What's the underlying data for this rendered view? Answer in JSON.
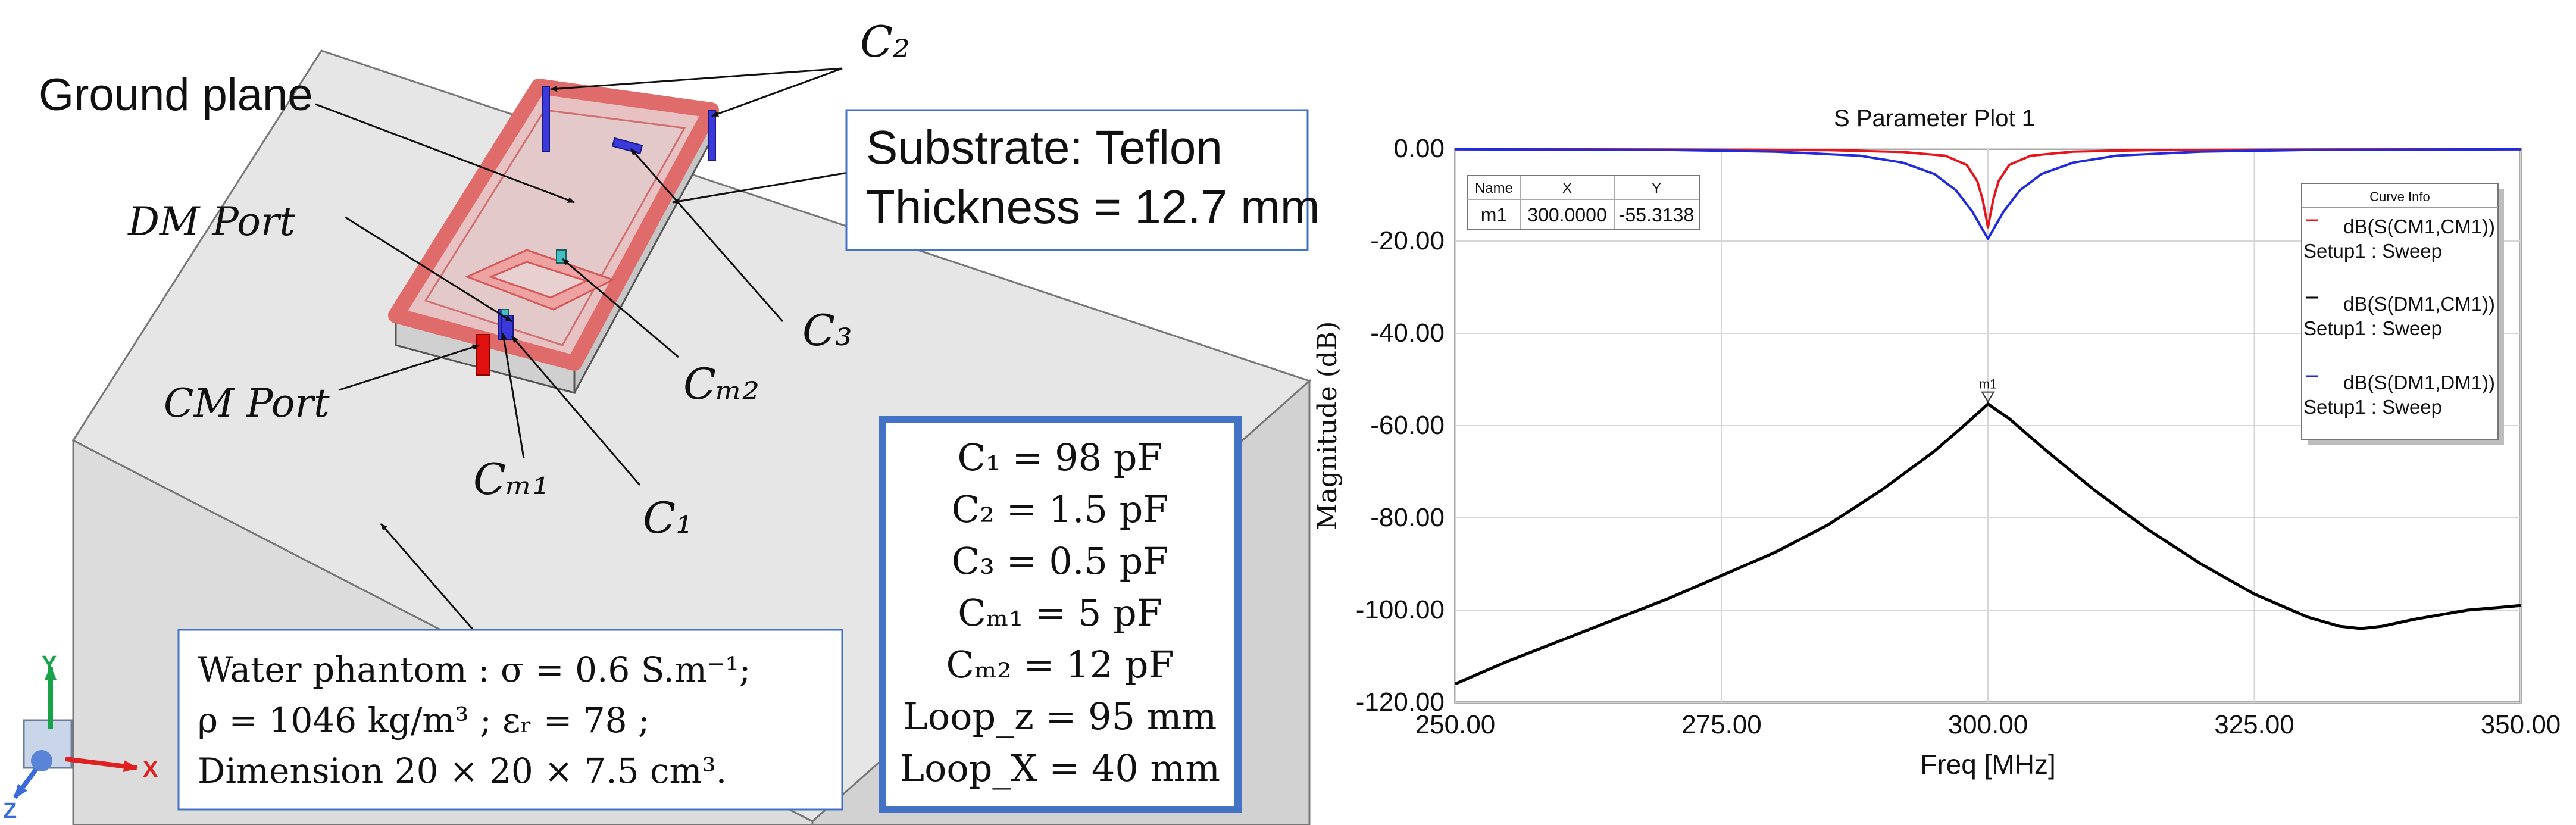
{
  "left_figure": {
    "labels": {
      "ground_plane": "Ground plane",
      "dm_port": "DM Port",
      "cm_port": "CM Port",
      "c1": "C₁",
      "c2": "C₂",
      "c3": "C₃",
      "cm1": "Cₘ₁",
      "cm2": "Cₘ₂"
    },
    "substrate_box": {
      "line1": "Substrate: Teflon",
      "line2": "Thickness = 12.7 mm"
    },
    "phantom_box": {
      "line1": "Water phantom :  σ = 0.6 S.m⁻¹;",
      "line2": "ρ = 1046  kg/m³ ; εᵣ = 78 ;",
      "line3": "Dimension 20 × 20 × 7.5 cm³."
    },
    "axes_triad": {
      "y": "Y",
      "x": "X",
      "z": "Z"
    }
  },
  "params_box": {
    "lines": [
      "C₁ = 98 pF",
      "C₂ = 1.5 pF",
      "C₃ = 0.5 pF",
      "Cₘ₁ = 5 pF",
      "Cₘ₂ = 12 pF",
      "Loop_z = 95 mm",
      "Loop_X = 40 mm"
    ]
  },
  "chart_data": {
    "type": "line",
    "title": "S Parameter Plot 1",
    "xlabel": "Freq [MHz]",
    "ylabel": "Magnitude (dB)",
    "xlim": [
      250,
      350
    ],
    "ylim": [
      -120,
      0
    ],
    "x_ticks": [
      "250.00",
      "275.00",
      "300.00",
      "325.00",
      "350.00"
    ],
    "y_ticks": [
      "0.00",
      "-20.00",
      "-40.00",
      "-60.00",
      "-80.00",
      "-100.00",
      "-120.00"
    ],
    "grid": true,
    "series": [
      {
        "name": "dB(S(CM1,CM1))",
        "setup": "Setup1 : Sweep",
        "color": "#e8141c",
        "x": [
          250,
          270,
          285,
          292,
          296,
          298,
          299,
          299.5,
          300,
          300.5,
          301,
          302,
          304,
          308,
          315,
          330,
          350
        ],
        "y": [
          -0.1,
          -0.15,
          -0.3,
          -0.7,
          -1.5,
          -3.5,
          -7,
          -11,
          -17,
          -11,
          -7,
          -3.5,
          -1.5,
          -0.6,
          -0.3,
          -0.15,
          -0.1
        ]
      },
      {
        "name": "dB(S(DM1,CM1))",
        "setup": "Setup1 : Sweep",
        "color": "#000000",
        "x": [
          250,
          255,
          260,
          265,
          270,
          275,
          280,
          285,
          290,
          295,
          298,
          300,
          302,
          305,
          310,
          315,
          320,
          325,
          330,
          333,
          335,
          337,
          340,
          345,
          350
        ],
        "y": [
          -116,
          -111,
          -106.5,
          -102,
          -97.5,
          -92.5,
          -87.5,
          -81.5,
          -74,
          -65.5,
          -59.5,
          -55.3,
          -58.5,
          -64.5,
          -74,
          -82.5,
          -90,
          -96.5,
          -101.5,
          -103.5,
          -104,
          -103.5,
          -102,
          -100,
          -99
        ]
      },
      {
        "name": "dB(S(DM1,DM1))",
        "setup": "Setup1 : Sweep",
        "color": "#1f2bdc",
        "x": [
          250,
          270,
          280,
          288,
          292,
          295,
          297,
          298.5,
          300,
          301.5,
          303,
          305,
          308,
          312,
          320,
          330,
          350
        ],
        "y": [
          -0.1,
          -0.25,
          -0.6,
          -1.5,
          -3,
          -5.5,
          -9,
          -13.5,
          -19.5,
          -13.5,
          -9,
          -5.5,
          -3,
          -1.5,
          -0.6,
          -0.25,
          -0.1
        ]
      }
    ],
    "markers": [
      {
        "name": "m1",
        "x": "300.0000",
        "y": "-55.3138",
        "xv": 300,
        "yv": -55.3138
      }
    ],
    "marker_table": {
      "headers": [
        "Name",
        "X",
        "Y"
      ]
    },
    "legend": {
      "title": "Curve Info",
      "position": "top-right"
    }
  }
}
